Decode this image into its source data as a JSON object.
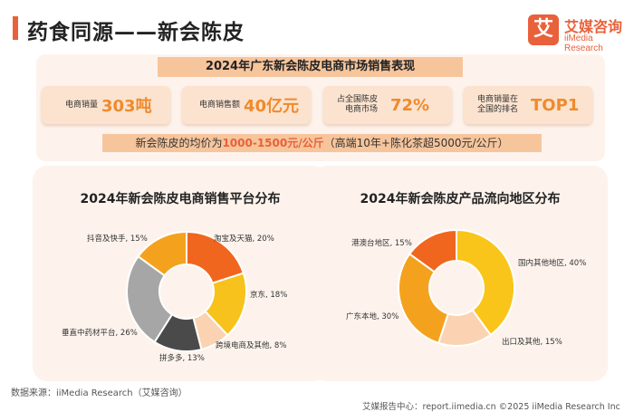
{
  "header": {
    "title": "药食同源——新会陈皮",
    "logo": {
      "mark": "艾",
      "name": "艾媒咨询",
      "sub": "iiMedia Research"
    }
  },
  "summary": {
    "heading": "2024年广东新会陈皮电商市场销售表现",
    "stats": [
      {
        "label_lines": [
          "电商销量"
        ],
        "value": "303吨"
      },
      {
        "label_lines": [
          "电商销售额"
        ],
        "value": "40亿元"
      },
      {
        "label_lines": [
          "占全国陈皮",
          "电商市场"
        ],
        "value": "72%"
      },
      {
        "label_lines": [
          "电商销量在",
          "全国的排名"
        ],
        "value": "TOP1"
      }
    ],
    "price_prefix": "新会陈皮的均价为",
    "price_highlight": "1000-1500元/公斤",
    "price_suffix": "（高端10年+陈化茶超5000元/公斤）"
  },
  "chart_data": [
    {
      "type": "pie",
      "donut": true,
      "title": "2024年新会陈皮电商销售平台分布",
      "slices": [
        {
          "label": "淘宝及天猫, 20%",
          "value": 20,
          "color": "#f0661e"
        },
        {
          "label": "京东, 18%",
          "value": 18,
          "color": "#f7c21c"
        },
        {
          "label": "跨境电商及其他, 8%",
          "value": 8,
          "color": "#fbd3b2"
        },
        {
          "label": "拼多多, 13%",
          "value": 13,
          "color": "#4a4a4a"
        },
        {
          "label": "垂直中药材平台, 26%",
          "value": 26,
          "color": "#a6a6a6"
        },
        {
          "label": "抖音及快手, 15%",
          "value": 15,
          "color": "#f4a21e"
        }
      ]
    },
    {
      "type": "pie",
      "donut": true,
      "title": "2024年新会陈皮产品流向地区分布",
      "slices": [
        {
          "label": "国内其他地区, 40%",
          "value": 40,
          "color": "#f9c51a"
        },
        {
          "label": "出口及其他, 15%",
          "value": 15,
          "color": "#fbd3b2"
        },
        {
          "label": "广东本地, 30%",
          "value": 30,
          "color": "#f4a21e"
        },
        {
          "label": "港澳台地区, 15%",
          "value": 15,
          "color": "#f0661e"
        }
      ]
    }
  ],
  "source": "数据来源：iiMedia Research（艾媒咨询）",
  "footer": "艾媒报告中心：report.iimedia.cn    ©2025  iiMedia Research  Inc"
}
